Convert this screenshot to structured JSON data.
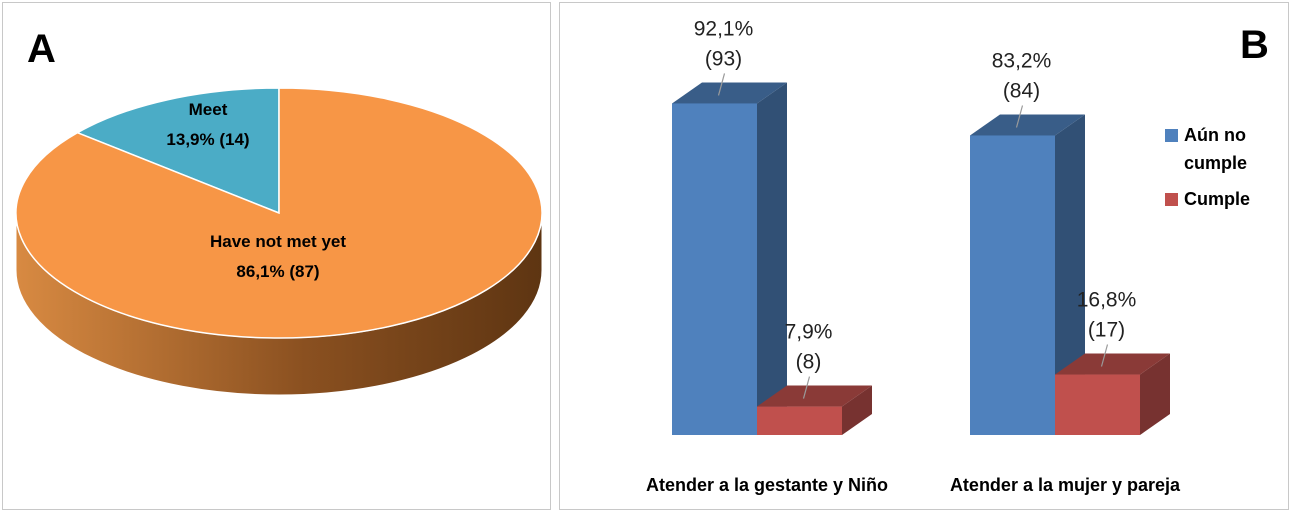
{
  "chart_data": [
    {
      "panel": "A",
      "type": "pie",
      "slices": [
        {
          "label": "Meet",
          "value_text": "13,9% (14)",
          "percent": 13.9,
          "count": 14,
          "color": "#4BACC6"
        },
        {
          "label": "Have not met yet",
          "value_text": "86,1% (87)",
          "percent": 86.1,
          "count": 87,
          "color": "#F79646"
        }
      ]
    },
    {
      "panel": "B",
      "type": "bar",
      "categories": [
        "Atender a la gestante y Niño",
        "Atender a la mujer y pareja"
      ],
      "series": [
        {
          "name": "Aún no cumple",
          "legend_lines": [
            "Aún no",
            "cumple"
          ],
          "color": "#4F81BD",
          "values": [
            92.1,
            83.2
          ],
          "counts": [
            93,
            84
          ],
          "pct_labels": [
            "92,1%",
            "83,2%"
          ],
          "count_labels": [
            "(93)",
            "(84)"
          ]
        },
        {
          "name": "Cumple",
          "legend_lines": [
            "Cumple"
          ],
          "color": "#C0504D",
          "values": [
            7.9,
            16.8
          ],
          "counts": [
            8,
            17
          ],
          "pct_labels": [
            "7,9%",
            "16,8%"
          ],
          "count_labels": [
            "(8)",
            "(17)"
          ]
        }
      ],
      "legend_position": "right",
      "grid": false
    }
  ]
}
